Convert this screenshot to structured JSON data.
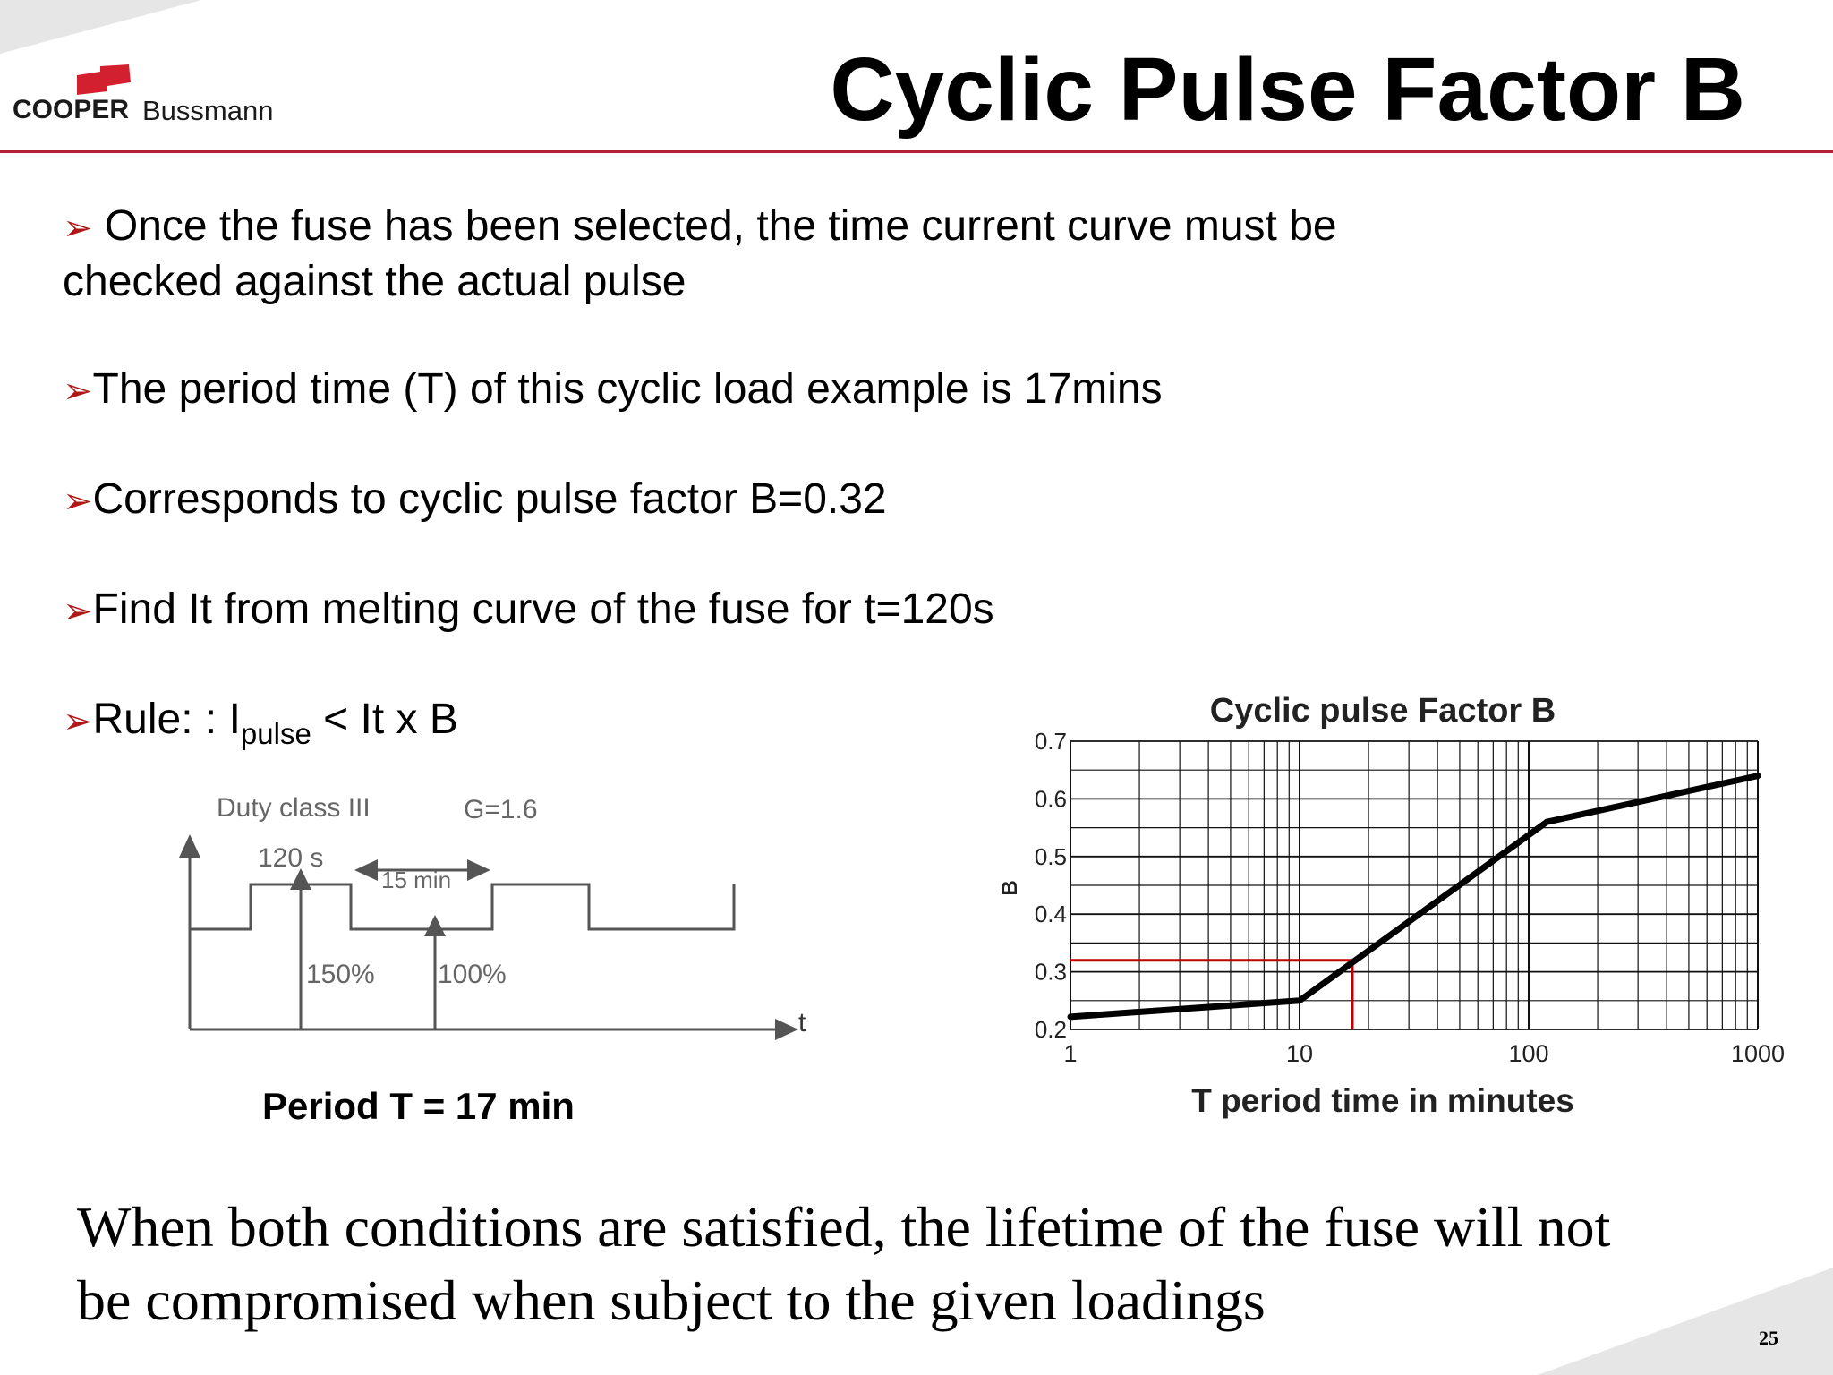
{
  "header": {
    "logo": {
      "brand_bold": "COOPER",
      "brand_regular": "Bussmann",
      "flag_color": "#d3202f"
    },
    "title": "Cyclic Pulse Factor B",
    "rule_color": "#b22234"
  },
  "bullets": {
    "b1_line1": "Once the fuse has been selected, the time current curve must be",
    "b1_line2": "checked against the actual pulse",
    "b2": "The period time (T) of this cyclic load example is 17mins",
    "b3": "Corresponds to cyclic pulse factor B=0.32",
    "b4": "Find It from melting curve of the fuse for t=120s",
    "b5_prefix": "Rule: : I",
    "b5_sub": "pulse",
    "b5_suffix": " < It x B",
    "arrow_glyph": "➢",
    "arrow_color": "#b01818"
  },
  "duty_diagram": {
    "duty_class": "Duty class III",
    "g_factor": "G=1.6",
    "pulse_time": "120 s",
    "gap_time": "15 min",
    "pulse_level": "150%",
    "base_level": "100%",
    "axis_label": "t",
    "period_caption": "Period T = 17 min"
  },
  "chart_data": {
    "type": "line",
    "title": "Cyclic pulse Factor B",
    "xlabel": "T period time in minutes",
    "ylabel": "B",
    "xscale": "log",
    "xlim": [
      1,
      1000
    ],
    "ylim": [
      0.2,
      0.7
    ],
    "x_ticks": [
      "1",
      "10",
      "100",
      "1000"
    ],
    "y_ticks": [
      "0.2",
      "0.3",
      "0.4",
      "0.5",
      "0.6",
      "0.7"
    ],
    "grid": true,
    "series": [
      {
        "x": [
          1,
          10,
          120,
          1000
        ],
        "y": [
          0.222,
          0.25,
          0.56,
          0.64
        ],
        "color": "#000000"
      }
    ],
    "annotation": {
      "x": 17,
      "y": 0.32,
      "color": "#c00000"
    }
  },
  "footer": {
    "line1": "When both conditions are satisfied, the lifetime of the fuse will not",
    "line2": "be compromised when subject to the given loadings",
    "page_number": "25"
  }
}
